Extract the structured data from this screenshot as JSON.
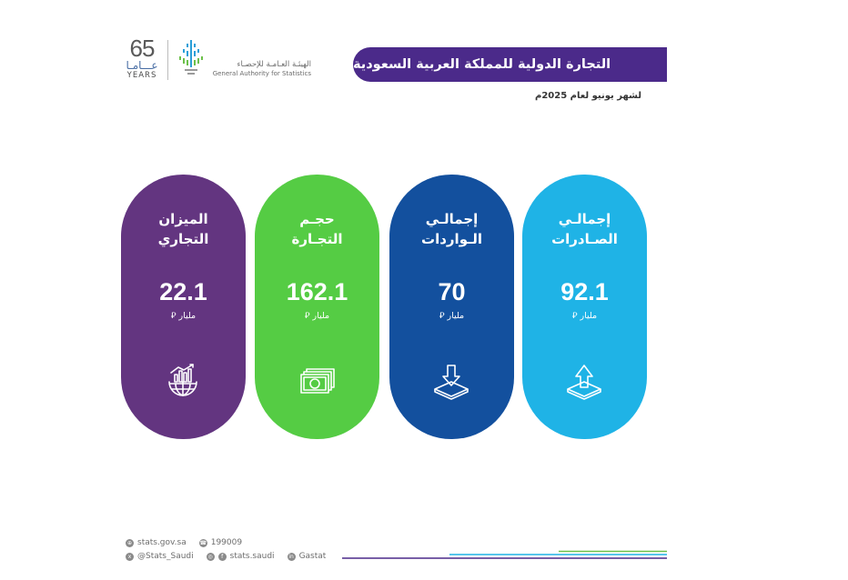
{
  "header": {
    "anniversary": {
      "number": "65",
      "arabic": "عـــامـا",
      "english": "YEARS"
    },
    "authority": {
      "arabic": "الهيئـة العـامـة للإحصـاء",
      "english": "General Authority for Statistics"
    },
    "title": "التجارة الدولية للمملكة العربية السعودية",
    "subtitle": "لشهر يونيو لعام 2025م"
  },
  "cards": [
    {
      "label_line1": "الميزان",
      "label_line2": "التجاري",
      "value": "22.1",
      "unit": "مليار ⃁",
      "icon": "globe-growth-chart-icon",
      "color": "#633580"
    },
    {
      "label_line1": "حجـم",
      "label_line2": "التجـارة",
      "value": "162.1",
      "unit": "مليار ⃁",
      "icon": "banknotes-icon",
      "color": "#55cc44"
    },
    {
      "label_line1": "إجمالـي",
      "label_line2": "الـواردات",
      "value": "70",
      "unit": "مليار ⃁",
      "icon": "download-tray-icon",
      "color": "#13509e"
    },
    {
      "label_line1": "إجمالـي",
      "label_line2": "الصـادرات",
      "value": "92.1",
      "unit": "مليار ⃁",
      "icon": "upload-tray-icon",
      "color": "#1fb3e6"
    }
  ],
  "footer": {
    "website": "stats.gov.sa",
    "phone": "199009",
    "twitter": "@Stats_Saudi",
    "instagram_facebook": "stats.saudi",
    "linkedin": "Gastat"
  },
  "colors": {
    "banner": "#4b2a8a",
    "accent_green": "#55cc44",
    "accent_blue": "#1fb3e6"
  }
}
